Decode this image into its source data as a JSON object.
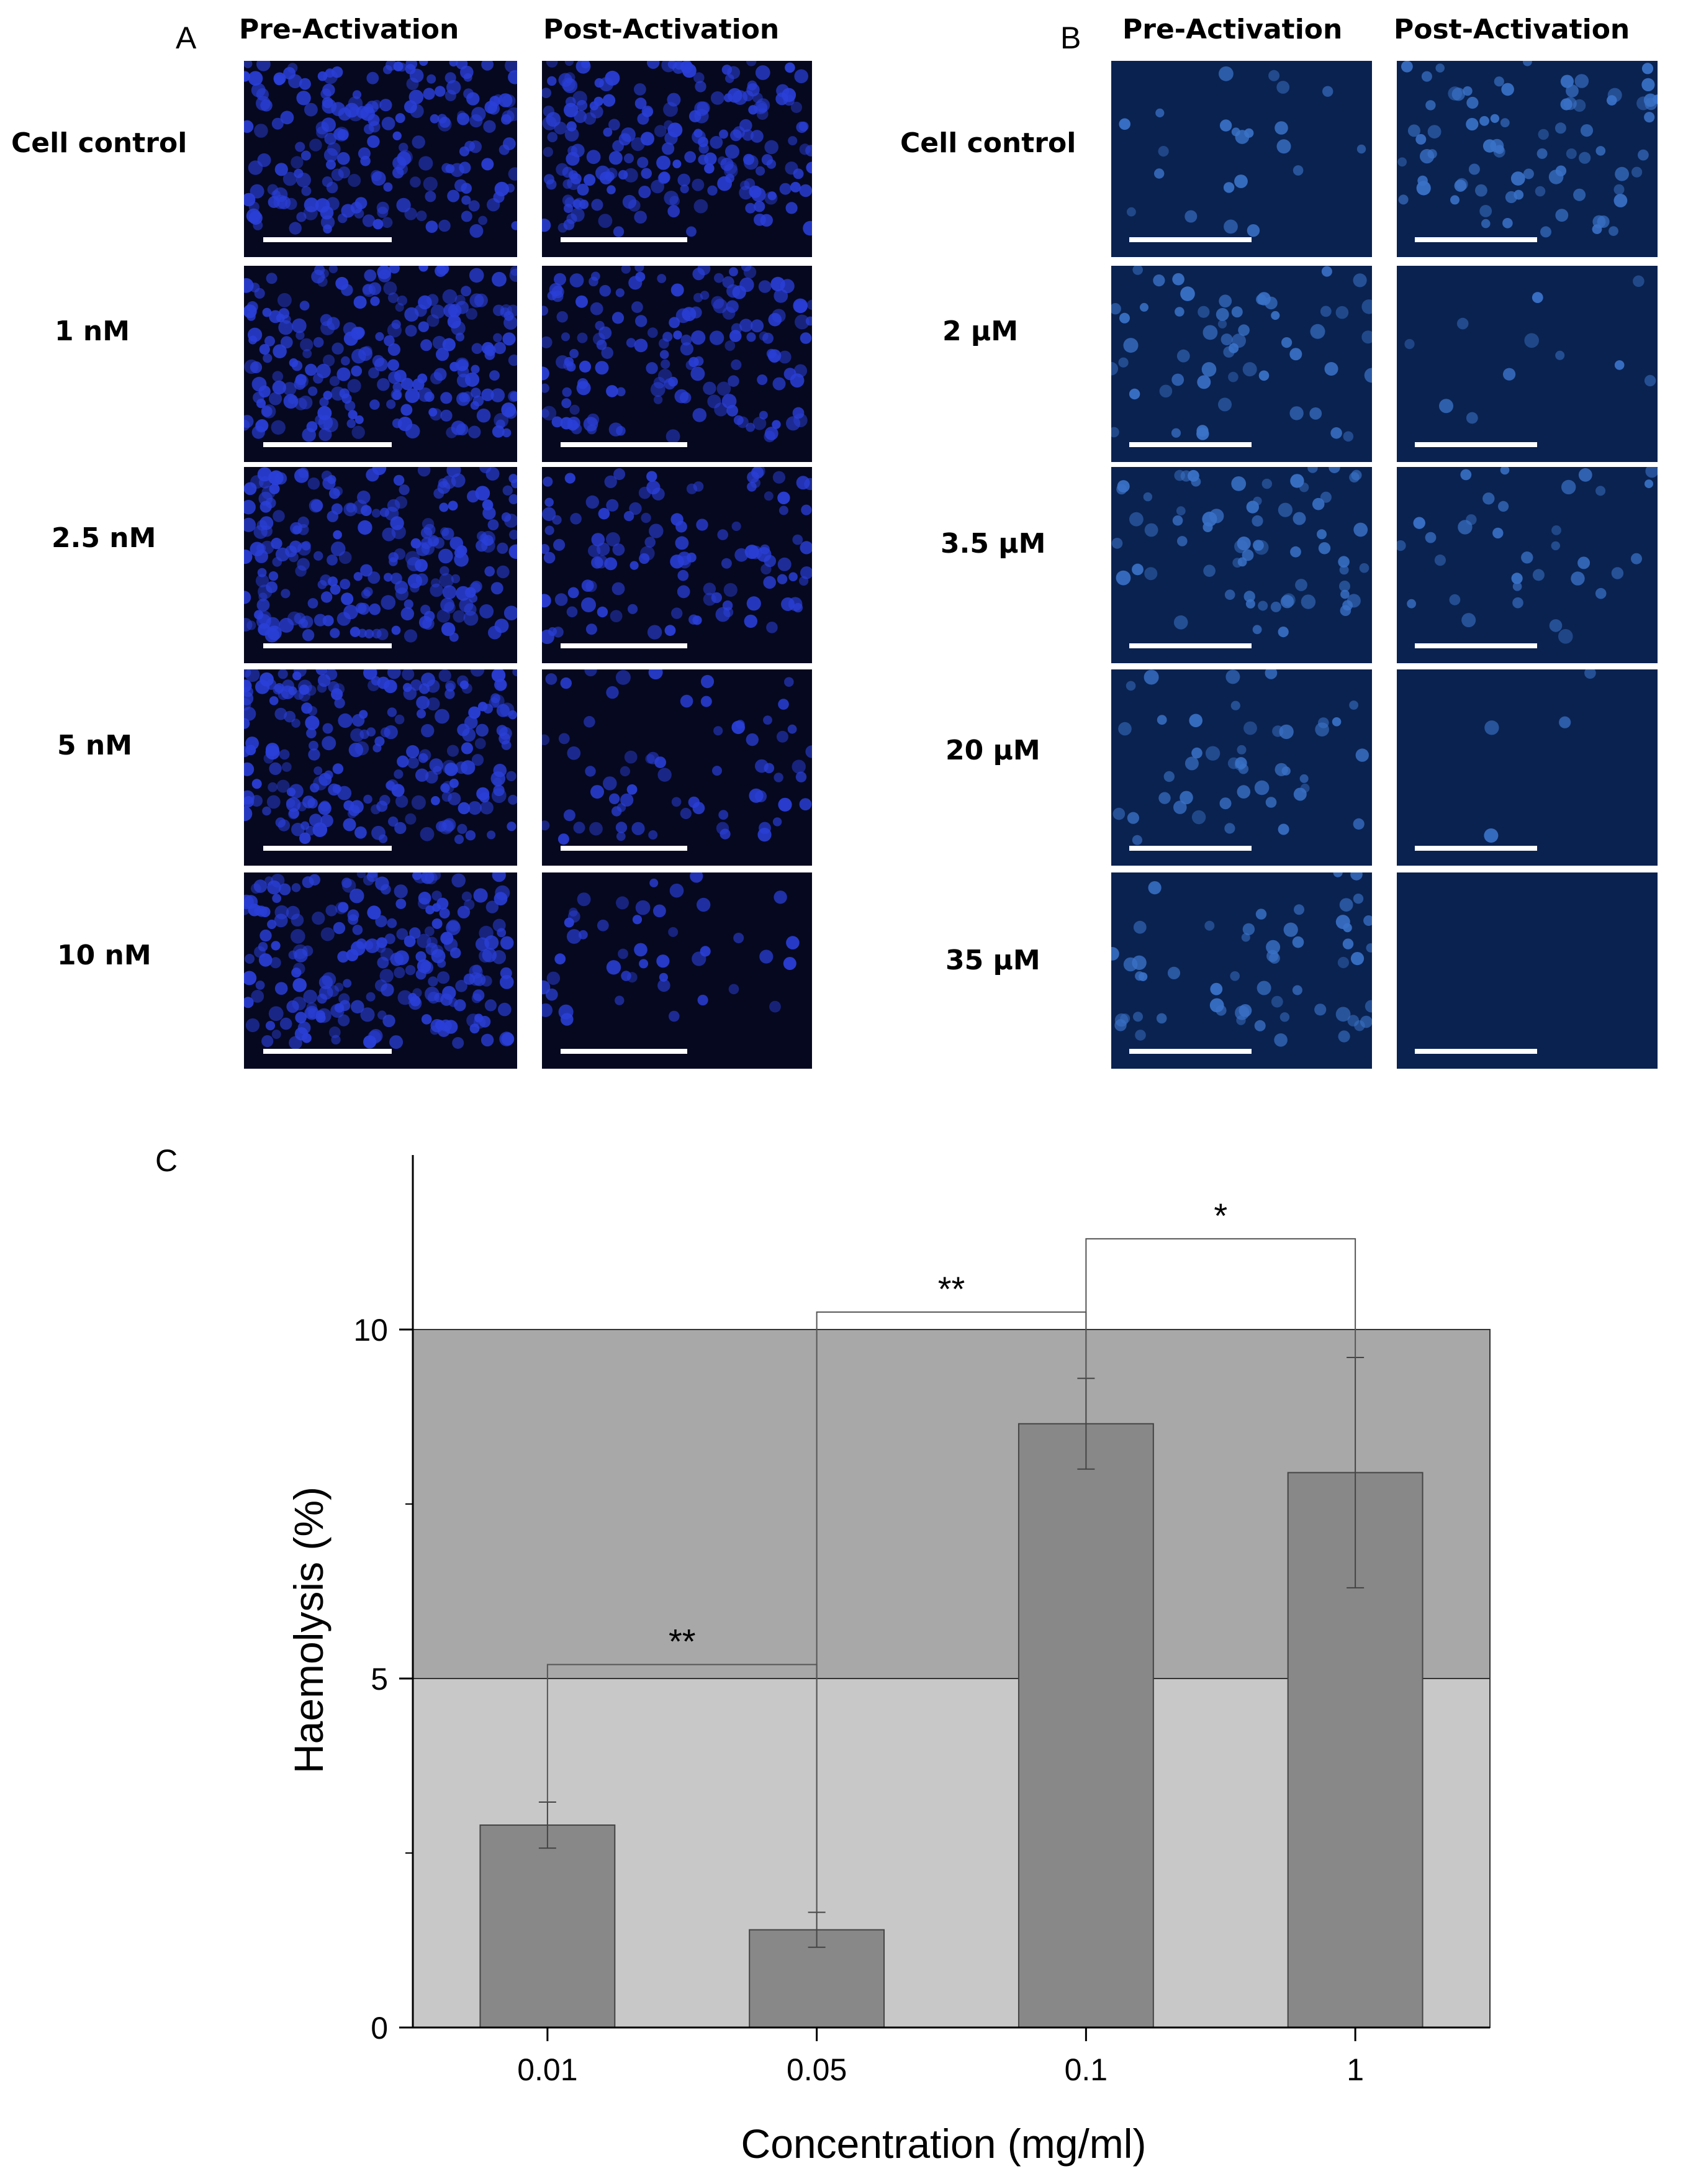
{
  "panel_a": {
    "letter": "A",
    "columns": [
      "Pre-Activation",
      "Post-Activation"
    ],
    "rows": [
      "Cell control",
      "1 nM",
      "2.5 nM",
      "5 nM",
      "10 nM"
    ],
    "density_pre": [
      0.9,
      1.0,
      1.0,
      1.0,
      1.0
    ],
    "density_post": [
      0.9,
      0.7,
      0.5,
      0.3,
      0.2
    ],
    "background": "#06081f",
    "nucleus_color": "#2a3fd8"
  },
  "panel_b": {
    "letter": "B",
    "columns": [
      "Pre-Activation",
      "Post-Activation"
    ],
    "rows": [
      "Cell control",
      "2 μM",
      "3.5 μM",
      "20 μM",
      "35 μM"
    ],
    "density_pre": [
      0.1,
      0.25,
      0.3,
      0.2,
      0.25
    ],
    "density_post": [
      0.35,
      0.05,
      0.15,
      0.02,
      0.0
    ],
    "background": "#0a2250",
    "nucleus_color": "#3a72c8"
  },
  "panel_c": {
    "letter": "C"
  },
  "chart_data": {
    "type": "bar",
    "categories": [
      "0.01",
      "0.05",
      "0.1",
      "1"
    ],
    "values": [
      2.9,
      1.4,
      8.65,
      7.95
    ],
    "errors": [
      0.33,
      0.25,
      0.65,
      1.65
    ],
    "xlabel": "Concentration (mg/ml)",
    "ylabel": "Haemolysis (%)",
    "ylim": [
      0,
      12.5
    ],
    "yticks": [
      0,
      5,
      10
    ],
    "shaded_bands": [
      {
        "from": 0,
        "to": 5,
        "color": "#c8c8c8"
      },
      {
        "from": 5,
        "to": 10,
        "color": "#a8a8a8"
      }
    ],
    "bar_color": "#888888",
    "significance": [
      {
        "from": 0,
        "to": 1,
        "label": "**",
        "level": 5.2
      },
      {
        "from": 1,
        "to": 2,
        "label": "**",
        "level": 10.25
      },
      {
        "from": 2,
        "to": 3,
        "label": "*",
        "level": 11.3
      }
    ],
    "grid": false,
    "legend": "none"
  }
}
